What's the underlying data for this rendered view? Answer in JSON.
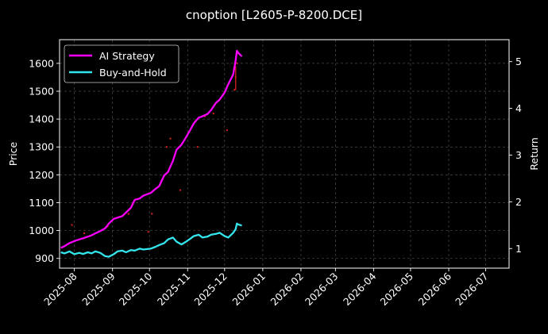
{
  "chart_data": {
    "type": "line",
    "title": "cnoption [L2605-P-8200.DCE]",
    "ylabel": "Price",
    "y2label": "Return",
    "xlim": [
      "2025-07-20",
      "2026-07-20"
    ],
    "ylim": [
      865,
      1685
    ],
    "y2lim": [
      0.58,
      5.47
    ],
    "x_ticks": [
      "2025-08",
      "2025-09",
      "2025-10",
      "2025-11",
      "2025-12",
      "2026-01",
      "2026-02",
      "2026-03",
      "2026-04",
      "2026-05",
      "2026-06",
      "2026-07"
    ],
    "y_ticks": [
      900,
      1000,
      1100,
      1200,
      1300,
      1400,
      1500,
      1600
    ],
    "y2_ticks": [
      1,
      2,
      3,
      4,
      5
    ],
    "grid": true,
    "legend_position": "top-left",
    "series": [
      {
        "name": "AI Strategy",
        "color": "#ff00ff",
        "axis": "price",
        "x": [
          "2025-07-21",
          "2025-07-24",
          "2025-07-28",
          "2025-08-01",
          "2025-08-05",
          "2025-08-08",
          "2025-08-12",
          "2025-08-15",
          "2025-08-18",
          "2025-08-22",
          "2025-08-26",
          "2025-08-29",
          "2025-09-02",
          "2025-09-05",
          "2025-09-09",
          "2025-09-12",
          "2025-09-16",
          "2025-09-19",
          "2025-09-23",
          "2025-09-26",
          "2025-10-02",
          "2025-10-06",
          "2025-10-09",
          "2025-10-13",
          "2025-10-16",
          "2025-10-20",
          "2025-10-23",
          "2025-10-27",
          "2025-10-30",
          "2025-11-03",
          "2025-11-06",
          "2025-11-10",
          "2025-11-13",
          "2025-11-17",
          "2025-11-20",
          "2025-11-24",
          "2025-11-27",
          "2025-12-01",
          "2025-12-04",
          "2025-12-08",
          "2025-12-10",
          "2025-12-11",
          "2025-12-12",
          "2025-12-15"
        ],
        "values": [
          938,
          944,
          955,
          962,
          968,
          972,
          978,
          983,
          990,
          998,
          1008,
          1025,
          1042,
          1046,
          1052,
          1065,
          1082,
          1110,
          1115,
          1125,
          1135,
          1150,
          1160,
          1198,
          1210,
          1250,
          1290,
          1308,
          1330,
          1360,
          1385,
          1405,
          1410,
          1418,
          1432,
          1458,
          1470,
          1495,
          1525,
          1560,
          1610,
          1645,
          1638,
          1625
        ]
      },
      {
        "name": "Buy-and-Hold",
        "color": "#33e6ee",
        "axis": "price",
        "x": [
          "2025-07-21",
          "2025-07-24",
          "2025-07-28",
          "2025-08-01",
          "2025-08-05",
          "2025-08-08",
          "2025-08-12",
          "2025-08-15",
          "2025-08-18",
          "2025-08-22",
          "2025-08-26",
          "2025-08-29",
          "2025-09-02",
          "2025-09-05",
          "2025-09-09",
          "2025-09-12",
          "2025-09-16",
          "2025-09-19",
          "2025-09-23",
          "2025-09-26",
          "2025-10-02",
          "2025-10-06",
          "2025-10-09",
          "2025-10-13",
          "2025-10-16",
          "2025-10-20",
          "2025-10-23",
          "2025-10-27",
          "2025-10-30",
          "2025-11-03",
          "2025-11-06",
          "2025-11-10",
          "2025-11-13",
          "2025-11-17",
          "2025-11-20",
          "2025-11-24",
          "2025-11-27",
          "2025-12-01",
          "2025-12-04",
          "2025-12-08",
          "2025-12-10",
          "2025-12-11",
          "2025-12-12",
          "2025-12-15"
        ],
        "values": [
          922,
          918,
          925,
          915,
          920,
          916,
          922,
          918,
          925,
          920,
          908,
          906,
          915,
          925,
          928,
          922,
          930,
          928,
          935,
          932,
          935,
          942,
          948,
          955,
          968,
          975,
          960,
          950,
          958,
          970,
          980,
          985,
          975,
          978,
          985,
          988,
          992,
          980,
          975,
          992,
          1005,
          1025,
          1022,
          1018
        ]
      }
    ],
    "scatter_points": {
      "color": "#cc1f1f",
      "x": [
        "2025-07-30",
        "2025-08-09",
        "2025-08-28",
        "2025-09-14",
        "2025-09-30",
        "2025-10-03",
        "2025-10-15",
        "2025-10-18",
        "2025-10-26",
        "2025-11-09",
        "2025-11-15",
        "2025-11-22",
        "2025-12-03",
        "2025-12-09",
        "2025-12-10",
        "2025-12-11"
      ],
      "values": [
        1020,
        990,
        1015,
        1060,
        995,
        1060,
        1300,
        1330,
        1145,
        1300,
        1410,
        1420,
        1360,
        1505,
        1550,
        1600
      ]
    }
  }
}
